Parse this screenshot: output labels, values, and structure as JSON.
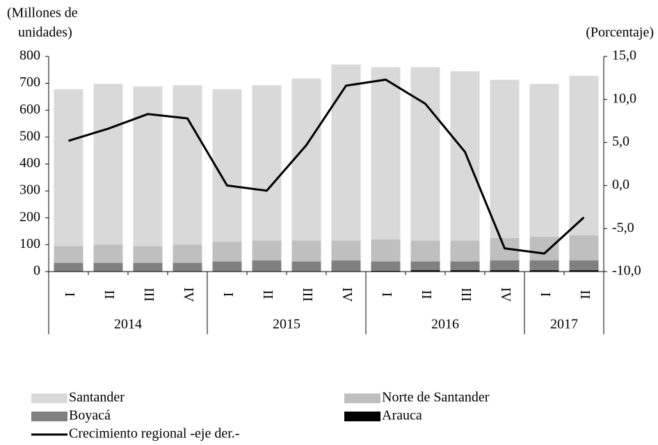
{
  "chart_data": {
    "type": "bar",
    "y_label_lines": [
      "(Millones de",
      "unidades)"
    ],
    "y2_label": "(Porcentaje)",
    "categories": [
      "I",
      "II",
      "III",
      "IV",
      "I",
      "II",
      "III",
      "IV",
      "I",
      "II",
      "III",
      "IV",
      "I",
      "II"
    ],
    "years": [
      "2014",
      "2015",
      "2016",
      "2017"
    ],
    "year_spans": [
      4,
      4,
      4,
      2
    ],
    "ylim": [
      0,
      800
    ],
    "yticks": [
      0,
      100,
      200,
      300,
      400,
      500,
      600,
      700,
      800
    ],
    "y2lim": [
      -10,
      15
    ],
    "y2ticks": [
      {
        "value": -10,
        "label": "-10,0"
      },
      {
        "value": -5,
        "label": "-5,0"
      },
      {
        "value": 0,
        "label": "0,0"
      },
      {
        "value": 5,
        "label": "5,0"
      },
      {
        "value": 10,
        "label": "10,0"
      },
      {
        "value": 15,
        "label": "15,0"
      }
    ],
    "series": [
      {
        "name": "Santander",
        "type": "bar",
        "color": "#d9d9d9",
        "values": [
          583,
          598,
          593,
          593,
          568,
          578,
          603,
          655,
          640,
          645,
          630,
          588,
          568,
          593
        ]
      },
      {
        "name": "Norte de Santander",
        "type": "bar",
        "color": "#bfbfbf",
        "values": [
          62,
          67,
          62,
          67,
          72,
          73,
          77,
          73,
          82,
          77,
          77,
          83,
          88,
          93
        ]
      },
      {
        "name": "Boyacá",
        "type": "bar",
        "color": "#808080",
        "values": [
          31,
          31,
          31,
          31,
          36,
          40,
          36,
          40,
          35,
          33,
          33,
          37,
          37,
          37
        ]
      },
      {
        "name": "Arauca",
        "type": "bar",
        "color": "#000000",
        "values": [
          2,
          2,
          2,
          2,
          2,
          2,
          2,
          2,
          3,
          5,
          5,
          5,
          5,
          5
        ]
      },
      {
        "name": "Crecimiento regional -eje der.-",
        "type": "line",
        "axis": "y2",
        "color": "#000000",
        "values": [
          5.2,
          6.6,
          8.3,
          7.8,
          0.0,
          -0.6,
          4.7,
          11.6,
          12.3,
          9.5,
          3.9,
          -7.3,
          -7.9,
          -3.7
        ]
      }
    ]
  }
}
